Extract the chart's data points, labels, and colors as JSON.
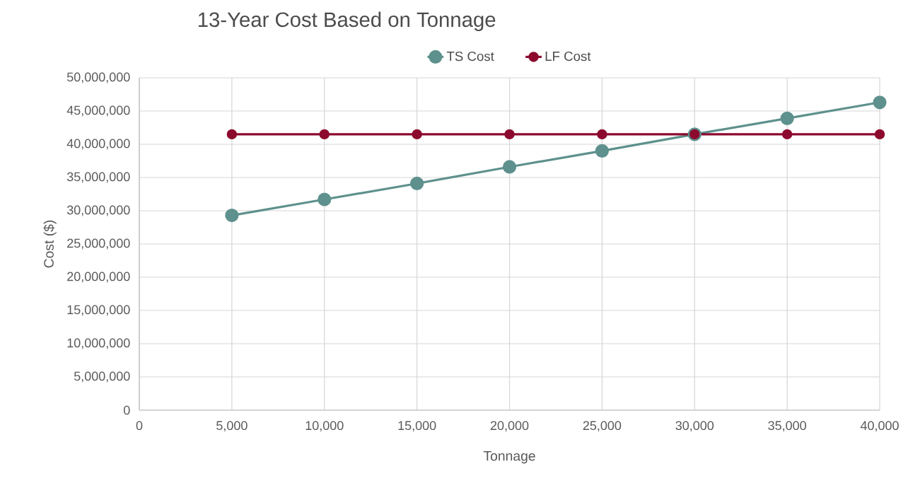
{
  "chart_data": {
    "type": "line",
    "title": "13-Year Cost Based on Tonnage",
    "xlabel": "Tonnage",
    "ylabel": "Cost ($)",
    "x": [
      5000,
      10000,
      15000,
      20000,
      25000,
      30000,
      35000,
      40000
    ],
    "series": [
      {
        "name": "TS Cost",
        "color": "#5e918d",
        "values": [
          29300000,
          31700000,
          34100000,
          36600000,
          39000000,
          41500000,
          43900000,
          46300000
        ]
      },
      {
        "name": "LF Cost",
        "color": "#8c0a2e",
        "values": [
          41500000,
          41500000,
          41500000,
          41500000,
          41500000,
          41500000,
          41500000,
          41500000
        ]
      }
    ],
    "xlim": [
      0,
      40000
    ],
    "ylim": [
      0,
      50000000
    ],
    "xticks": [
      0,
      {
        "value": 5000,
        "label": "5,000"
      },
      {
        "value": 10000,
        "label": "10,000"
      },
      {
        "value": 15000,
        "label": "15,000"
      },
      {
        "value": 20000,
        "label": "20,000"
      },
      {
        "value": 25000,
        "label": "25,000"
      },
      {
        "value": 30000,
        "label": "30,000"
      },
      {
        "value": 35000,
        "label": "35,000"
      },
      {
        "value": 40000,
        "label": "40,000"
      }
    ],
    "yticks": [
      0,
      {
        "value": 5000000,
        "label": "5,000,000"
      },
      {
        "value": 10000000,
        "label": "10,000,000"
      },
      {
        "value": 15000000,
        "label": "15,000,000"
      },
      {
        "value": 20000000,
        "label": "20,000,000"
      },
      {
        "value": 25000000,
        "label": "25,000,000"
      },
      {
        "value": 30000000,
        "label": "30,000,000"
      },
      {
        "value": 35000000,
        "label": "35,000,000"
      },
      {
        "value": 40000000,
        "label": "40,000,000"
      },
      {
        "value": 45000000,
        "label": "45,000,000"
      },
      {
        "value": 50000000,
        "label": "50,000,000"
      }
    ],
    "grid": true,
    "legend": "top",
    "marker": "circle",
    "line_style": "solid"
  }
}
